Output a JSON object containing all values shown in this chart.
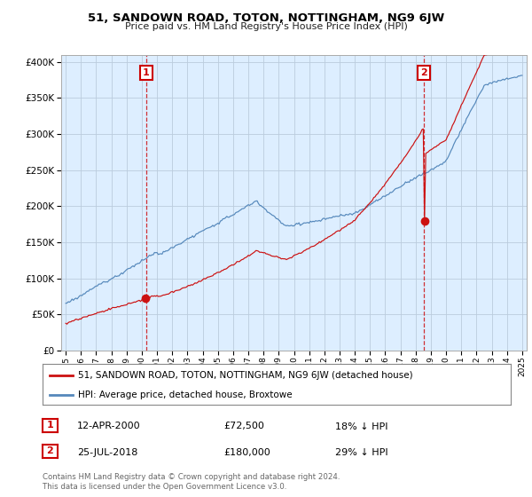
{
  "title": "51, SANDOWN ROAD, TOTON, NOTTINGHAM, NG9 6JW",
  "subtitle": "Price paid vs. HM Land Registry's House Price Index (HPI)",
  "legend_line1": "51, SANDOWN ROAD, TOTON, NOTTINGHAM, NG9 6JW (detached house)",
  "legend_line2": "HPI: Average price, detached house, Broxtowe",
  "annotation1": {
    "label": "1",
    "date": "12-APR-2000",
    "price": "£72,500",
    "note": "18% ↓ HPI",
    "x_year": 2000.28
  },
  "annotation2": {
    "label": "2",
    "date": "25-JUL-2018",
    "price": "£180,000",
    "note": "29% ↓ HPI",
    "x_year": 2018.56
  },
  "footer": "Contains HM Land Registry data © Crown copyright and database right 2024.\nThis data is licensed under the Open Government Licence v3.0.",
  "hpi_color": "#5588bb",
  "price_color": "#cc1111",
  "annotation_color": "#cc0000",
  "vline_color": "#cc0000",
  "chart_bg": "#ddeeff",
  "background_color": "#ffffff",
  "grid_color": "#bbccdd",
  "ylim": [
    0,
    410000
  ],
  "yticks": [
    0,
    50000,
    100000,
    150000,
    200000,
    250000,
    300000,
    350000,
    400000
  ],
  "xlim_start": 1994.7,
  "xlim_end": 2025.3,
  "sale1_price": 72500,
  "sale1_year": 2000.28,
  "sale2_price": 180000,
  "sale2_year": 2018.56
}
